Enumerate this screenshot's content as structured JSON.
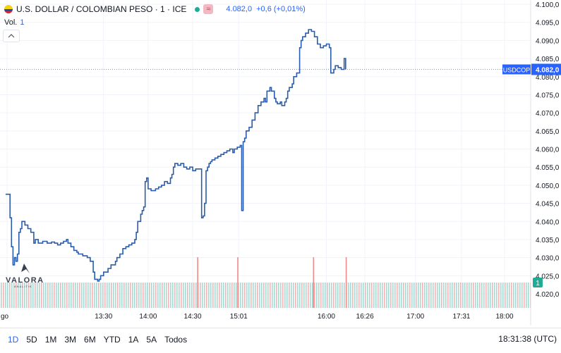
{
  "header": {
    "title": "U.S. DOLLAR / COLOMBIAN PESO · 1 · ICE",
    "delayed_icon": "≈",
    "price": "4.082,0",
    "change": "+0,6 (+0,01%)"
  },
  "volume": {
    "label": "Vol.",
    "value": "1"
  },
  "bottom_bar": {
    "timeframes": [
      "1D",
      "5D",
      "1M",
      "3M",
      "6M",
      "YTD",
      "1A",
      "5A",
      "Todos"
    ],
    "active": "1D",
    "clock": "18:31:38 (UTC)"
  },
  "logo": {
    "word": "VALORA",
    "sub": "ANALITIK"
  },
  "colors": {
    "line": "#2a5caa",
    "up_vol": "#a5dbd3",
    "down_vol": "#f2b4b4",
    "last_price_tag": "#2962ff",
    "vol_tag": "#22ab94"
  },
  "chart_data": {
    "type": "line",
    "symbol": "USDCOP",
    "last_price": 4082.0,
    "last_price_label": "4.082,0",
    "volume_last": "1",
    "ylim": [
      4017,
      4101
    ],
    "y_ticks": [
      4100,
      4095,
      4090,
      4085,
      4080,
      4075,
      4070,
      4065,
      4060,
      4055,
      4050,
      4045,
      4040,
      4035,
      4030,
      4025,
      4020
    ],
    "y_tick_labels": [
      "4.100,0",
      "4.095,0",
      "4.090,0",
      "4.085,0",
      "4.080,0",
      "4.075,0",
      "4.070,0",
      "4.065,0",
      "4.060,0",
      "4.055,0",
      "4.050,0",
      "4.045,0",
      "4.040,0",
      "4.035,0",
      "4.030,0",
      "4.025,0",
      "4.020,0"
    ],
    "x_labels": [
      "go",
      "13:30",
      "14:00",
      "14:30",
      "15:01",
      "16:00",
      "16:26",
      "17:00",
      "17:31",
      "18:00"
    ],
    "x_label_minutes": [
      745,
      810,
      840,
      870,
      901,
      960,
      986,
      1020,
      1051,
      1080
    ],
    "xlim": [
      744,
      1096
    ],
    "series": [
      {
        "points": [
          [
            744,
            4047.5
          ],
          [
            746,
            4047.5
          ],
          [
            747,
            4041
          ],
          [
            748,
            4033
          ],
          [
            749,
            4028
          ],
          [
            750,
            4030
          ],
          [
            751,
            4029
          ],
          [
            752,
            4031
          ],
          [
            753,
            4037
          ],
          [
            754,
            4038
          ],
          [
            755,
            4040
          ],
          [
            757,
            4039
          ],
          [
            759,
            4038
          ],
          [
            761,
            4037
          ],
          [
            763,
            4034
          ],
          [
            764,
            4035
          ],
          [
            766,
            4034
          ],
          [
            769,
            4034.5
          ],
          [
            772,
            4034
          ],
          [
            775,
            4034.3
          ],
          [
            777,
            4034
          ],
          [
            779,
            4033.5
          ],
          [
            781,
            4034
          ],
          [
            783,
            4034.5
          ],
          [
            785,
            4035
          ],
          [
            786,
            4034
          ],
          [
            788,
            4033
          ],
          [
            790,
            4032
          ],
          [
            792,
            4031.5
          ],
          [
            793,
            4031
          ],
          [
            796,
            4030.5
          ],
          [
            799,
            4030
          ],
          [
            801,
            4029
          ],
          [
            803,
            4026
          ],
          [
            804,
            4024
          ],
          [
            806,
            4023.5
          ],
          [
            807,
            4024
          ],
          [
            808,
            4025
          ],
          [
            810,
            4026
          ],
          [
            813,
            4027
          ],
          [
            815,
            4028
          ],
          [
            818,
            4029
          ],
          [
            819,
            4030
          ],
          [
            821,
            4031
          ],
          [
            823,
            4032.5
          ],
          [
            825,
            4033
          ],
          [
            827,
            4033.5
          ],
          [
            829,
            4034
          ],
          [
            831,
            4035
          ],
          [
            832,
            4037
          ],
          [
            833,
            4040
          ],
          [
            835,
            4042
          ],
          [
            836,
            4043
          ],
          [
            837,
            4044
          ],
          [
            838,
            4051
          ],
          [
            839,
            4052
          ],
          [
            840,
            4049
          ],
          [
            842,
            4048.5
          ],
          [
            845,
            4049
          ],
          [
            847,
            4049.5
          ],
          [
            849,
            4050
          ],
          [
            851,
            4051
          ],
          [
            853,
            4050.5
          ],
          [
            855,
            4052
          ],
          [
            856,
            4053
          ],
          [
            857,
            4055
          ],
          [
            858,
            4056
          ],
          [
            860,
            4055.5
          ],
          [
            862,
            4056
          ],
          [
            864,
            4055
          ],
          [
            866,
            4054.5
          ],
          [
            868,
            4055
          ],
          [
            870,
            4054
          ],
          [
            872,
            4054.5
          ],
          [
            874,
            4054.5
          ],
          [
            875,
            4054.5
          ],
          [
            876,
            4041
          ],
          [
            877,
            4041.5
          ],
          [
            878,
            4045
          ],
          [
            879,
            4054
          ],
          [
            880,
            4055
          ],
          [
            881,
            4056
          ],
          [
            882,
            4056.5
          ],
          [
            883,
            4057
          ],
          [
            885,
            4057.5
          ],
          [
            887,
            4058
          ],
          [
            889,
            4058.5
          ],
          [
            891,
            4059
          ],
          [
            893,
            4059.5
          ],
          [
            895,
            4060
          ],
          [
            897,
            4059
          ],
          [
            898,
            4060
          ],
          [
            900,
            4060.5
          ],
          [
            902,
            4061
          ],
          [
            903,
            4043
          ],
          [
            904,
            4062
          ],
          [
            905,
            4063
          ],
          [
            906,
            4065
          ],
          [
            908,
            4066
          ],
          [
            910,
            4068
          ],
          [
            912,
            4070
          ],
          [
            914,
            4072
          ],
          [
            916,
            4073
          ],
          [
            918,
            4074
          ],
          [
            919,
            4073
          ],
          [
            920,
            4076
          ],
          [
            922,
            4077
          ],
          [
            923,
            4076
          ],
          [
            925,
            4074
          ],
          [
            926,
            4073
          ],
          [
            927,
            4072.5
          ],
          [
            929,
            4073
          ],
          [
            930,
            4072
          ],
          [
            932,
            4073
          ],
          [
            933,
            4074
          ],
          [
            934,
            4076
          ],
          [
            935,
            4077
          ],
          [
            937,
            4078
          ],
          [
            938,
            4080
          ],
          [
            940,
            4081
          ],
          [
            942,
            4088
          ],
          [
            943,
            4090
          ],
          [
            944,
            4091
          ],
          [
            946,
            4092
          ],
          [
            948,
            4093
          ],
          [
            950,
            4092.5
          ],
          [
            952,
            4091
          ],
          [
            954,
            4089
          ],
          [
            956,
            4088
          ],
          [
            958,
            4088.5
          ],
          [
            960,
            4089
          ],
          [
            962,
            4088
          ],
          [
            963,
            4081
          ],
          [
            965,
            4082
          ],
          [
            966,
            4083
          ],
          [
            968,
            4082.5
          ],
          [
            970,
            4082
          ],
          [
            972,
            4085
          ],
          [
            973,
            4082
          ]
        ]
      }
    ],
    "volume_spikes_minutes": [
      873,
      900,
      951,
      973
    ]
  }
}
